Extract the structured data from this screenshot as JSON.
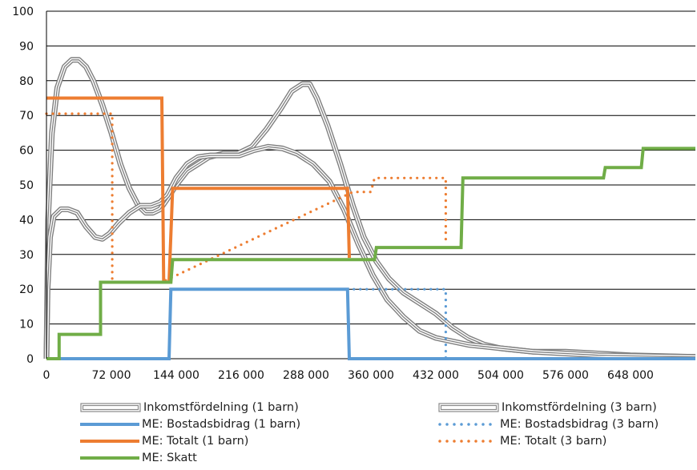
{
  "chart_data": {
    "type": "line",
    "title": "",
    "xlabel": "",
    "ylabel": "",
    "xlim": [
      0,
      720000
    ],
    "ylim": [
      0,
      100
    ],
    "x_ticks": [
      0,
      72000,
      144000,
      216000,
      288000,
      360000,
      432000,
      504000,
      576000,
      648000
    ],
    "x_tick_labels": [
      "0",
      "72 000",
      "144 000",
      "216 000",
      "288 000",
      "360 000",
      "432 000",
      "504 000",
      "576 000",
      "648 000"
    ],
    "y_ticks": [
      0,
      10,
      20,
      30,
      40,
      50,
      60,
      70,
      80,
      90,
      100
    ],
    "y_tick_labels": [
      "0",
      "10",
      "20",
      "30",
      "40",
      "50",
      "60",
      "70",
      "80",
      "90",
      "100"
    ],
    "grid": "horizontal",
    "legend_position": "bottom",
    "series": [
      {
        "name": "Inkomstfördelning (1 barn)",
        "style": "double-line",
        "color": "#7f7f7f",
        "points": [
          [
            0,
            0
          ],
          [
            1800,
            40
          ],
          [
            6000,
            65
          ],
          [
            12000,
            78
          ],
          [
            20000,
            84
          ],
          [
            28000,
            86
          ],
          [
            36000,
            86
          ],
          [
            44000,
            84
          ],
          [
            52000,
            80
          ],
          [
            62000,
            73
          ],
          [
            72000,
            65
          ],
          [
            82000,
            56
          ],
          [
            92000,
            49
          ],
          [
            102000,
            44
          ],
          [
            110000,
            42
          ],
          [
            118000,
            42
          ],
          [
            126000,
            43
          ],
          [
            134000,
            46
          ],
          [
            144000,
            50
          ],
          [
            156000,
            54
          ],
          [
            168000,
            56
          ],
          [
            180000,
            58
          ],
          [
            196000,
            59
          ],
          [
            212000,
            59
          ],
          [
            228000,
            61
          ],
          [
            244000,
            66
          ],
          [
            260000,
            72
          ],
          [
            272000,
            77
          ],
          [
            284000,
            79
          ],
          [
            292000,
            79
          ],
          [
            300000,
            75
          ],
          [
            312000,
            67
          ],
          [
            326000,
            56
          ],
          [
            340000,
            44
          ],
          [
            352000,
            35
          ],
          [
            366000,
            28
          ],
          [
            380000,
            23
          ],
          [
            396000,
            19
          ],
          [
            414000,
            16
          ],
          [
            432000,
            13
          ],
          [
            450000,
            9
          ],
          [
            468000,
            6
          ],
          [
            486000,
            4
          ],
          [
            504000,
            3
          ],
          [
            540000,
            2
          ],
          [
            576000,
            2
          ],
          [
            612000,
            1.5
          ],
          [
            648000,
            1
          ],
          [
            720000,
            0.5
          ]
        ]
      },
      {
        "name": "Inkomstfördelning (3 barn)",
        "style": "double-line",
        "color": "#7f7f7f",
        "points": [
          [
            0,
            0
          ],
          [
            1200,
            20
          ],
          [
            4000,
            35
          ],
          [
            8000,
            41
          ],
          [
            16000,
            43
          ],
          [
            24000,
            43
          ],
          [
            34000,
            42
          ],
          [
            44000,
            38
          ],
          [
            54000,
            35
          ],
          [
            62000,
            34.5
          ],
          [
            70000,
            36
          ],
          [
            80000,
            39
          ],
          [
            92000,
            42
          ],
          [
            104000,
            44
          ],
          [
            116000,
            44
          ],
          [
            126000,
            45
          ],
          [
            134000,
            47
          ],
          [
            144000,
            52
          ],
          [
            156000,
            56
          ],
          [
            168000,
            58
          ],
          [
            182000,
            58.5
          ],
          [
            198000,
            58.5
          ],
          [
            214000,
            58.5
          ],
          [
            230000,
            60
          ],
          [
            246000,
            61
          ],
          [
            262000,
            60.5
          ],
          [
            278000,
            59
          ],
          [
            296000,
            56
          ],
          [
            314000,
            51
          ],
          [
            330000,
            43
          ],
          [
            346000,
            33
          ],
          [
            362000,
            24
          ],
          [
            378000,
            17
          ],
          [
            396000,
            12
          ],
          [
            414000,
            8
          ],
          [
            432000,
            6
          ],
          [
            450000,
            5
          ],
          [
            468000,
            4
          ],
          [
            486000,
            3.5
          ],
          [
            504000,
            3
          ],
          [
            540000,
            2
          ],
          [
            576000,
            1.5
          ],
          [
            612000,
            1
          ],
          [
            648000,
            0.8
          ],
          [
            720000,
            0.5
          ]
        ]
      },
      {
        "name": "ME: Bostadsbidrag (1 barn)",
        "style": "solid",
        "color": "#5b9bd5",
        "points": [
          [
            0,
            0
          ],
          [
            136000,
            0
          ],
          [
            138000,
            20
          ],
          [
            334000,
            20
          ],
          [
            336000,
            0
          ],
          [
            720000,
            0
          ]
        ]
      },
      {
        "name": "ME: Bostadsbidrag (3 barn)",
        "style": "dotted",
        "color": "#5b9bd5",
        "points": [
          [
            334000,
            20
          ],
          [
            443000,
            20
          ],
          [
            443000,
            0
          ]
        ]
      },
      {
        "name": "ME: Totalt (1 barn)",
        "style": "solid",
        "color": "#ed7d31",
        "points": [
          [
            0,
            75
          ],
          [
            128000,
            75
          ],
          [
            130000,
            22
          ],
          [
            136000,
            22
          ],
          [
            140000,
            49
          ],
          [
            334000,
            49
          ],
          [
            336000,
            29
          ]
        ]
      },
      {
        "name": "ME: Totalt (3 barn)",
        "style": "dotted",
        "color": "#ed7d31",
        "points": [
          [
            0,
            70.5
          ],
          [
            73000,
            70.5
          ],
          [
            73000,
            22
          ],
          [
            128000,
            22
          ],
          [
            340000,
            48
          ],
          [
            360000,
            48
          ],
          [
            364000,
            52
          ],
          [
            443000,
            52
          ],
          [
            443000,
            33
          ]
        ]
      },
      {
        "name": "ME: Skatt",
        "style": "solid",
        "color": "#70ad47",
        "points": [
          [
            0,
            0
          ],
          [
            14000,
            0
          ],
          [
            14000,
            7
          ],
          [
            60000,
            7
          ],
          [
            60000,
            22
          ],
          [
            134000,
            22
          ],
          [
            134000,
            22
          ],
          [
            138000,
            22
          ],
          [
            140000,
            28.5
          ],
          [
            364000,
            28.5
          ],
          [
            366000,
            32
          ],
          [
            460000,
            32
          ],
          [
            462000,
            52
          ],
          [
            618000,
            52
          ],
          [
            620000,
            55
          ],
          [
            660000,
            55
          ],
          [
            662000,
            60.5
          ],
          [
            720000,
            60.5
          ]
        ]
      }
    ]
  }
}
